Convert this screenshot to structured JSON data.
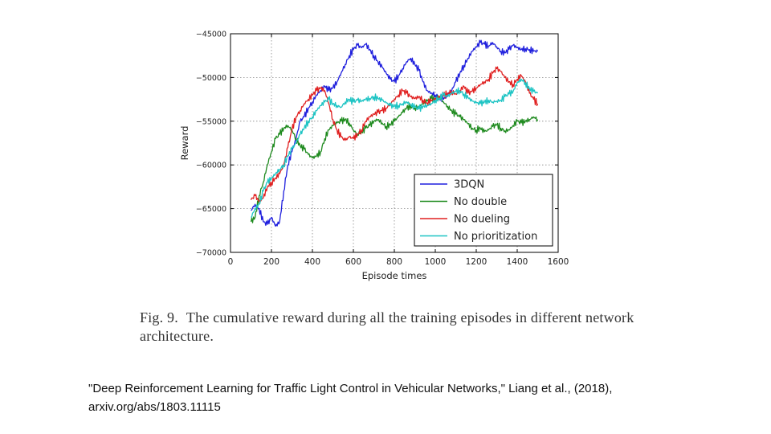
{
  "chart_data": {
    "type": "line",
    "xlabel": "Episode times",
    "ylabel": "Reward",
    "xlim": [
      0,
      1600
    ],
    "ylim": [
      -70000,
      -45000
    ],
    "xticks": [
      0,
      200,
      400,
      600,
      800,
      1000,
      1200,
      1400,
      1600
    ],
    "xtick_labels": [
      "0",
      "200",
      "400",
      "600",
      "800",
      "1000",
      "1200",
      "1400",
      "1600"
    ],
    "yticks": [
      -45000,
      -50000,
      -55000,
      -60000,
      -65000,
      -70000
    ],
    "ytick_labels": [
      "−45000",
      "−50000",
      "−55000",
      "−60000",
      "−65000",
      "−70000"
    ],
    "grid": true,
    "legend_position": "bottom-right",
    "series": [
      {
        "name": "3DQN",
        "color": "#1f1fdd",
        "x": [
          100,
          120,
          140,
          160,
          180,
          200,
          220,
          240,
          260,
          280,
          300,
          320,
          340,
          360,
          380,
          400,
          420,
          440,
          460,
          480,
          500,
          520,
          540,
          560,
          580,
          600,
          620,
          640,
          660,
          680,
          700,
          720,
          740,
          760,
          780,
          800,
          820,
          840,
          860,
          880,
          900,
          920,
          940,
          960,
          980,
          1000,
          1020,
          1040,
          1060,
          1080,
          1100,
          1120,
          1140,
          1160,
          1180,
          1200,
          1220,
          1240,
          1260,
          1280,
          1300,
          1320,
          1340,
          1360,
          1380,
          1400,
          1420,
          1440,
          1460,
          1480,
          1500
        ],
        "y": [
          -65200,
          -64500,
          -65000,
          -66500,
          -66800,
          -66000,
          -67000,
          -66500,
          -63000,
          -60000,
          -58500,
          -57000,
          -55000,
          -54500,
          -53500,
          -52800,
          -52000,
          -51500,
          -51000,
          -51500,
          -51200,
          -50500,
          -49500,
          -48500,
          -47500,
          -46800,
          -46300,
          -46600,
          -46200,
          -46800,
          -47500,
          -48200,
          -48800,
          -49500,
          -50200,
          -50500,
          -49800,
          -49000,
          -48200,
          -47800,
          -48500,
          -49200,
          -50500,
          -51500,
          -51800,
          -52000,
          -52200,
          -52500,
          -52000,
          -51500,
          -50500,
          -49500,
          -48600,
          -47800,
          -47000,
          -46500,
          -46000,
          -46200,
          -46400,
          -46000,
          -46500,
          -47000,
          -47200,
          -46800,
          -46300,
          -46600,
          -46800,
          -46700,
          -46800,
          -47000,
          -47000
        ]
      },
      {
        "name": "No double",
        "color": "#1e8a1e",
        "x": [
          100,
          120,
          140,
          160,
          180,
          200,
          220,
          240,
          260,
          280,
          300,
          320,
          340,
          360,
          380,
          400,
          420,
          440,
          460,
          480,
          500,
          520,
          540,
          560,
          580,
          600,
          620,
          640,
          660,
          680,
          700,
          720,
          740,
          760,
          780,
          800,
          820,
          840,
          860,
          880,
          900,
          920,
          940,
          960,
          980,
          1000,
          1020,
          1040,
          1060,
          1080,
          1100,
          1120,
          1140,
          1160,
          1180,
          1200,
          1220,
          1240,
          1260,
          1280,
          1300,
          1320,
          1340,
          1360,
          1380,
          1400,
          1420,
          1440,
          1460,
          1480,
          1500
        ],
        "y": [
          -66500,
          -66000,
          -63500,
          -62000,
          -60000,
          -58500,
          -57000,
          -56500,
          -55800,
          -55500,
          -56000,
          -57000,
          -57800,
          -58200,
          -58800,
          -59200,
          -59000,
          -58500,
          -57000,
          -56000,
          -55500,
          -55200,
          -55000,
          -54800,
          -55200,
          -56000,
          -56500,
          -56200,
          -55800,
          -55500,
          -55000,
          -54800,
          -55200,
          -55600,
          -55400,
          -55000,
          -54500,
          -54000,
          -53500,
          -53200,
          -53500,
          -53400,
          -53000,
          -52700,
          -52400,
          -52500,
          -52200,
          -52800,
          -53300,
          -53800,
          -54200,
          -54500,
          -54800,
          -55300,
          -55800,
          -56000,
          -55800,
          -56200,
          -56000,
          -55600,
          -55400,
          -55800,
          -56100,
          -56000,
          -55500,
          -55000,
          -55200,
          -55000,
          -54800,
          -54500,
          -54800
        ]
      },
      {
        "name": "No dueling",
        "color": "#e02020",
        "x": [
          100,
          120,
          140,
          160,
          180,
          200,
          220,
          240,
          260,
          280,
          300,
          320,
          340,
          360,
          380,
          400,
          420,
          440,
          460,
          480,
          500,
          520,
          540,
          560,
          580,
          600,
          620,
          640,
          660,
          680,
          700,
          720,
          740,
          760,
          780,
          800,
          820,
          840,
          860,
          880,
          900,
          920,
          940,
          960,
          980,
          1000,
          1020,
          1040,
          1060,
          1080,
          1100,
          1120,
          1140,
          1160,
          1180,
          1200,
          1220,
          1240,
          1260,
          1280,
          1300,
          1320,
          1340,
          1360,
          1380,
          1400,
          1420,
          1440,
          1460,
          1480,
          1500
        ],
        "y": [
          -64000,
          -63500,
          -64200,
          -63800,
          -62500,
          -62000,
          -61500,
          -61000,
          -60000,
          -58000,
          -56000,
          -54500,
          -53800,
          -53000,
          -52500,
          -52000,
          -51500,
          -51200,
          -51500,
          -53000,
          -54800,
          -56000,
          -56800,
          -57200,
          -56800,
          -57000,
          -56500,
          -56000,
          -55000,
          -54500,
          -54200,
          -54000,
          -53800,
          -53500,
          -53000,
          -52500,
          -52000,
          -51500,
          -51800,
          -52200,
          -52400,
          -52200,
          -52600,
          -52900,
          -52700,
          -52500,
          -52300,
          -52100,
          -51800,
          -51600,
          -51900,
          -51500,
          -51000,
          -51800,
          -51600,
          -51200,
          -50800,
          -50500,
          -50200,
          -49500,
          -49000,
          -49300,
          -50000,
          -50500,
          -50800,
          -50200,
          -49800,
          -50500,
          -51800,
          -52500,
          -53000
        ]
      },
      {
        "name": "No prioritization",
        "color": "#1ec4c4",
        "x": [
          100,
          120,
          140,
          160,
          180,
          200,
          220,
          240,
          260,
          280,
          300,
          320,
          340,
          360,
          380,
          400,
          420,
          440,
          460,
          480,
          500,
          520,
          540,
          560,
          580,
          600,
          620,
          640,
          660,
          680,
          700,
          720,
          740,
          760,
          780,
          800,
          820,
          840,
          860,
          880,
          900,
          920,
          940,
          960,
          980,
          1000,
          1020,
          1040,
          1060,
          1080,
          1100,
          1120,
          1140,
          1160,
          1180,
          1200,
          1220,
          1240,
          1260,
          1280,
          1300,
          1320,
          1340,
          1360,
          1380,
          1400,
          1420,
          1440,
          1460,
          1480,
          1500
        ],
        "y": [
          -66000,
          -65000,
          -64500,
          -63000,
          -62000,
          -61500,
          -61000,
          -60500,
          -60000,
          -59000,
          -58200,
          -57500,
          -56500,
          -55800,
          -55000,
          -54500,
          -53800,
          -53200,
          -52800,
          -52500,
          -53000,
          -53200,
          -53400,
          -52800,
          -52500,
          -52800,
          -52600,
          -52700,
          -52500,
          -52400,
          -52200,
          -52400,
          -52600,
          -52900,
          -53200,
          -53300,
          -53200,
          -53000,
          -52800,
          -53100,
          -53400,
          -53600,
          -53300,
          -53200,
          -53000,
          -52600,
          -52400,
          -52000,
          -52200,
          -51800,
          -51600,
          -51500,
          -51900,
          -52300,
          -52700,
          -52900,
          -53000,
          -52800,
          -52600,
          -52800,
          -52700,
          -52600,
          -52200,
          -51900,
          -51600,
          -50600,
          -50200,
          -50600,
          -51300,
          -51600,
          -51800
        ]
      }
    ]
  },
  "caption": {
    "fig_label": "Fig. 9.",
    "text": "The cumulative reward during all the training episodes in different network architecture."
  },
  "citation": {
    "line1": "\"Deep Reinforcement Learning for Traffic Light Control in Vehicular Networks,\" Liang et al., (2018),",
    "line2": "arxiv.org/abs/1803.11115"
  }
}
